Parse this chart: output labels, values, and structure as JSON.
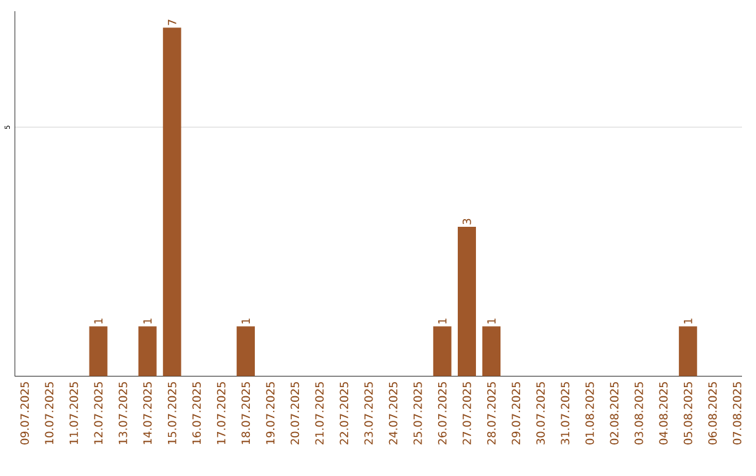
{
  "chart_data": {
    "type": "bar",
    "categories": [
      "09.07.2025",
      "10.07.2025",
      "11.07.2025",
      "12.07.2025",
      "13.07.2025",
      "14.07.2025",
      "15.07.2025",
      "16.07.2025",
      "17.07.2025",
      "18.07.2025",
      "19.07.2025",
      "20.07.2025",
      "21.07.2025",
      "22.07.2025",
      "23.07.2025",
      "24.07.2025",
      "25.07.2025",
      "26.07.2025",
      "27.07.2025",
      "28.07.2025",
      "29.07.2025",
      "30.07.2025",
      "31.07.2025",
      "01.08.2025",
      "02.08.2025",
      "03.08.2025",
      "04.08.2025",
      "05.08.2025",
      "06.08.2025",
      "07.08.2025"
    ],
    "values": [
      0,
      0,
      0,
      1,
      0,
      1,
      7,
      0,
      0,
      1,
      0,
      0,
      0,
      0,
      0,
      0,
      0,
      1,
      3,
      1,
      0,
      0,
      0,
      0,
      0,
      0,
      0,
      1,
      0,
      0
    ],
    "value_labels": [
      null,
      null,
      null,
      "1",
      null,
      "1",
      "7",
      null,
      null,
      "1",
      null,
      null,
      null,
      null,
      null,
      null,
      null,
      "1",
      "3",
      "1",
      null,
      null,
      null,
      null,
      null,
      null,
      null,
      "1",
      null,
      null
    ],
    "color": "#a0582a",
    "ylim": [
      0,
      7.33
    ],
    "yticks": [
      5
    ],
    "grid": "y"
  }
}
